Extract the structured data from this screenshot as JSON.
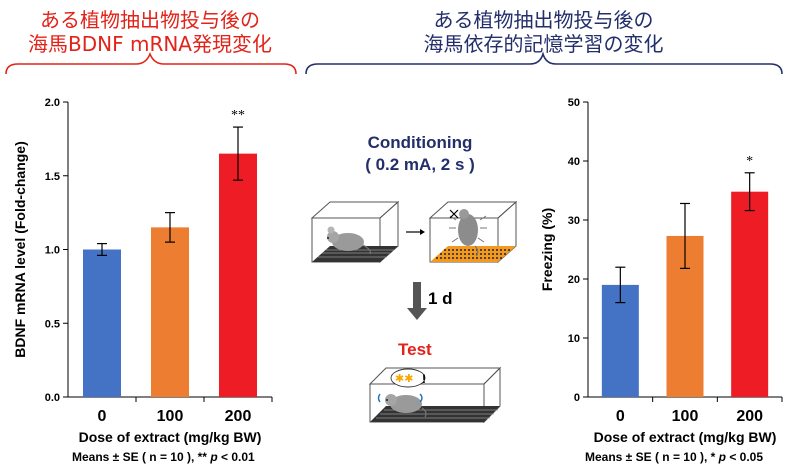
{
  "headings": {
    "left": [
      "ある植物抽出物投与後の",
      "海馬BDNF mRNA発現変化"
    ],
    "right": [
      "ある植物抽出物投与後の",
      "海馬依存的記憶学習の変化"
    ]
  },
  "colors": {
    "left_heading": "#e2231a",
    "right_heading": "#232f6b",
    "bar_0": "#4472c4",
    "bar_100": "#ed7d31",
    "bar_200": "#ee1c25"
  },
  "protocol": {
    "conditioning": "Conditioning",
    "conditioning_params": "( 0.2 mA, 2 s )",
    "delay": "1 d",
    "test": "Test"
  },
  "footnotes": {
    "left_prefix": "Means ± SE ( n = 10 ), ** ",
    "left_p": "p",
    "left_suffix": " < 0.01",
    "right_prefix": "Means ± SE ( n = 10 ), * ",
    "right_p": "p",
    "right_suffix": " < 0.05"
  },
  "chart_data": [
    {
      "type": "bar",
      "categories": [
        "0",
        "100",
        "200"
      ],
      "values": [
        1.0,
        1.15,
        1.65
      ],
      "errors": [
        0.04,
        0.1,
        0.18
      ],
      "significance": [
        "",
        "",
        "**"
      ],
      "xlabel": "Dose of extract (mg/kg BW)",
      "ylabel": "BDNF mRNA level (Fold-change)",
      "ylim": [
        0,
        2.0
      ],
      "yticks": [
        "0.0",
        "0.5",
        "1.0",
        "1.5",
        "2.0"
      ],
      "ytick_values": [
        0,
        0.5,
        1.0,
        1.5,
        2.0
      ],
      "bar_colors": [
        "#4472c4",
        "#ed7d31",
        "#ee1c25"
      ]
    },
    {
      "type": "bar",
      "categories": [
        "0",
        "100",
        "200"
      ],
      "values": [
        19.0,
        27.3,
        34.8
      ],
      "errors": [
        3.0,
        5.5,
        3.2
      ],
      "significance": [
        "",
        "",
        "*"
      ],
      "xlabel": "Dose of extract (mg/kg BW)",
      "ylabel": "Freezing (%)",
      "ylim": [
        0,
        50
      ],
      "yticks": [
        "0",
        "10",
        "20",
        "30",
        "40",
        "50"
      ],
      "ytick_values": [
        0,
        10,
        20,
        30,
        40,
        50
      ],
      "bar_colors": [
        "#4472c4",
        "#ed7d31",
        "#ee1c25"
      ]
    }
  ]
}
